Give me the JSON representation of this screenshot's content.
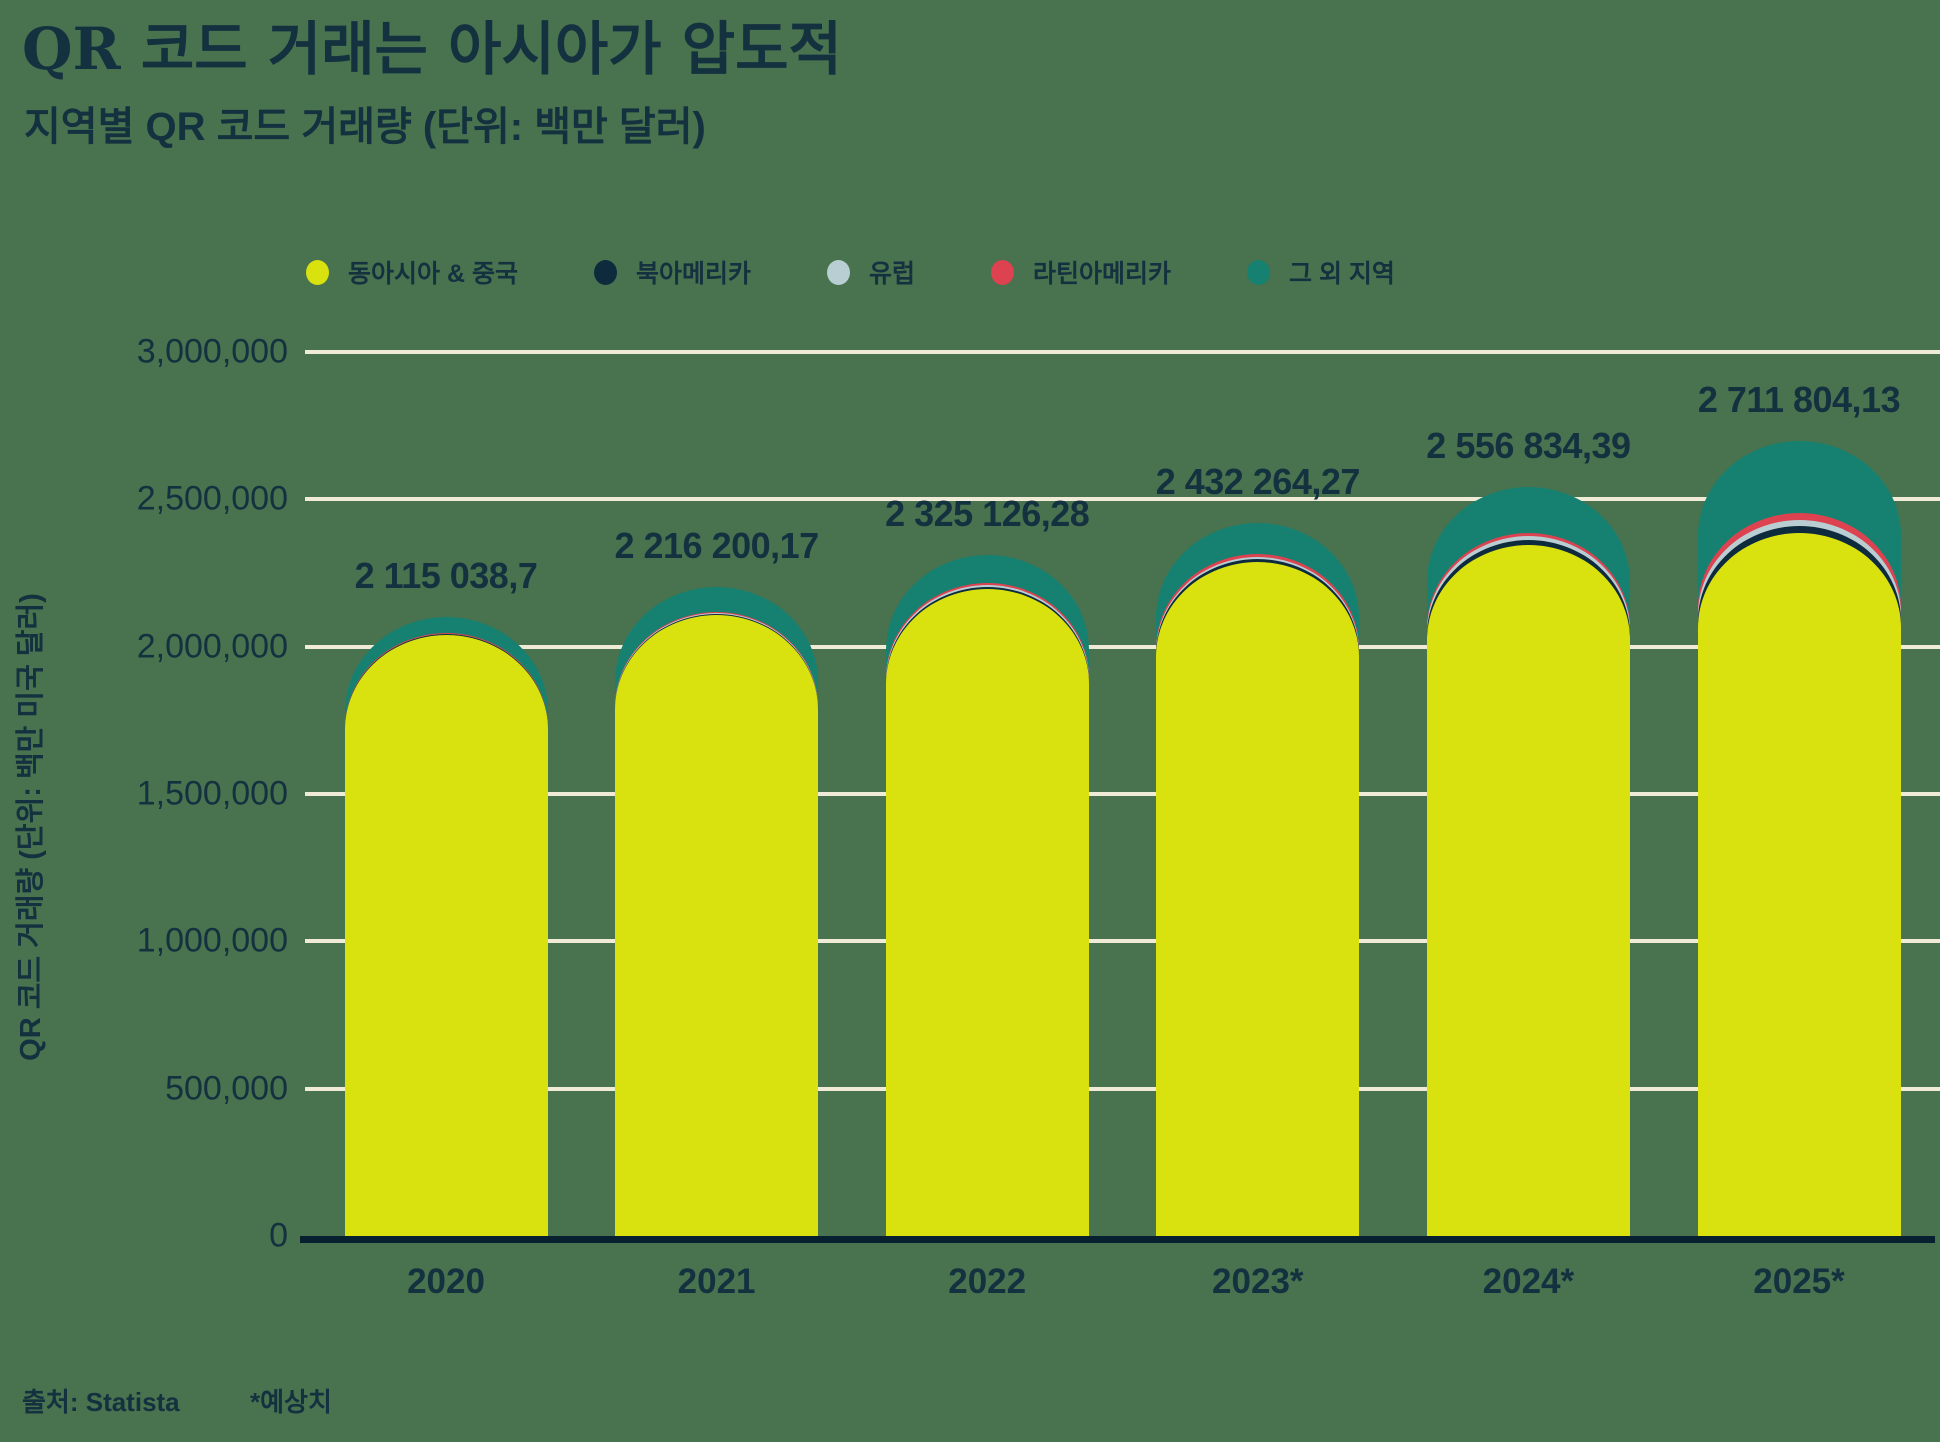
{
  "header": {
    "title": "QR 코드 거래는 아시아가 압도적",
    "subtitle": "지역별 QR 코드 거래량 (단위: 백만 달러)"
  },
  "legend": [
    {
      "label": "동아시아 & 중국",
      "color": "#D9E20F",
      "key": "east-asia-china"
    },
    {
      "label": "북아메리카",
      "color": "#0E2B3D",
      "key": "north-america"
    },
    {
      "label": "유럽",
      "color": "#B9CED3",
      "key": "europe"
    },
    {
      "label": "라틴아메리카",
      "color": "#DC4250",
      "key": "latin-america"
    },
    {
      "label": "그 외 지역",
      "color": "#168170",
      "key": "other-regions"
    }
  ],
  "y_axis": {
    "title": "QR 코드 거래량 (단위: 백만 미국 달러)",
    "ticks": [
      {
        "label": "3,000,000",
        "value": 3000000
      },
      {
        "label": "2,500,000",
        "value": 2500000
      },
      {
        "label": "2,000,000",
        "value": 2000000
      },
      {
        "label": "1,500,000",
        "value": 1500000
      },
      {
        "label": "1,000,000",
        "value": 1000000
      },
      {
        "label": "500,000",
        "value": 500000
      },
      {
        "label": "0",
        "value": 0
      }
    ]
  },
  "footer": {
    "source": "출처: Statista",
    "note": "*예상치"
  },
  "chart_data": {
    "type": "bar",
    "stacked": true,
    "rounded_top": true,
    "categories": [
      "2020",
      "2021",
      "2022",
      "2023*",
      "2024*",
      "2025*"
    ],
    "series": [
      {
        "name": "동아시아 & 중국",
        "key": "east-asia-china",
        "color": "#D9E20F",
        "values": [
          2052000,
          2120000,
          2210000,
          2300000,
          2360000,
          2400000
        ],
        "estimated": true
      },
      {
        "name": "북아메리카",
        "key": "north-america",
        "color": "#0E2B3D",
        "values": [
          3000,
          4500,
          7000,
          10000,
          15000,
          22000
        ],
        "estimated": true
      },
      {
        "name": "유럽",
        "key": "europe",
        "color": "#B9CED3",
        "values": [
          2500,
          4000,
          6000,
          9000,
          14000,
          20000
        ],
        "estimated": true
      },
      {
        "name": "라틴아메리카",
        "key": "latin-america",
        "color": "#DC4250",
        "values": [
          2000,
          3500,
          5000,
          8000,
          12000,
          25000
        ],
        "estimated": true
      },
      {
        "name": "그 외 지역",
        "key": "other-regions",
        "color": "#168170",
        "values": [
          55538.7,
          84200.17,
          97126.28,
          105264.27,
          155834.39,
          244804.13
        ],
        "estimated": true
      }
    ],
    "totals": [
      2115038.7,
      2216200.17,
      2325126.28,
      2432264.27,
      2556834.39,
      2711804.13
    ],
    "total_labels": [
      "2 115 038,7",
      "2 216 200,17",
      "2 325 126,28",
      "2 432 264,27",
      "2 556 834,39",
      "2 711 804,13"
    ],
    "title": "QR 코드 거래는 아시아가 압도적",
    "subtitle": "지역별 QR 코드 거래량 (단위: 백만 달러)",
    "xlabel": "",
    "ylabel": "QR 코드 거래량 (단위: 백만 미국 달러)",
    "ylim": [
      0,
      3000000
    ],
    "grid": true,
    "legend_position": "top"
  }
}
